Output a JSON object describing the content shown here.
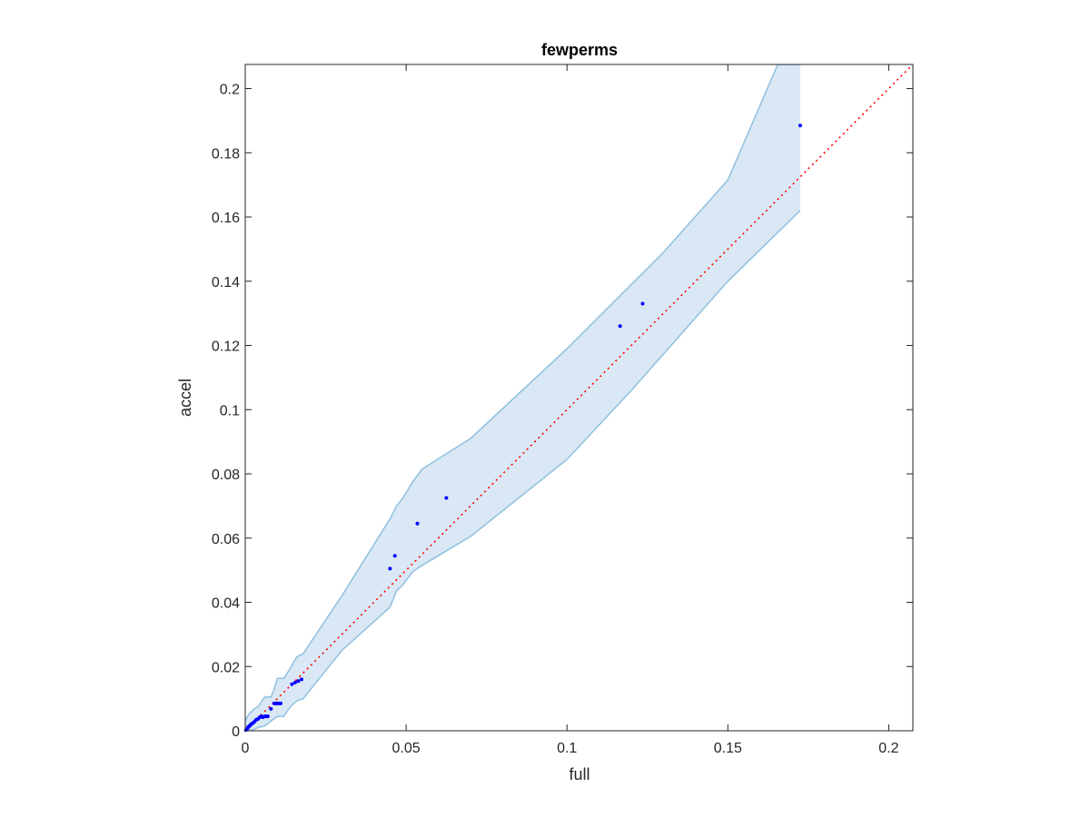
{
  "chart_data": {
    "type": "scatter",
    "title": "fewperms",
    "xlabel": "full",
    "ylabel": "accel",
    "xlim": [
      0,
      0.2075
    ],
    "ylim": [
      0,
      0.2075
    ],
    "xticks": [
      0,
      0.05,
      0.1,
      0.15,
      0.2
    ],
    "xtick_labels": [
      "0",
      "0.05",
      "0.1",
      "0.15",
      "0.2"
    ],
    "yticks": [
      0,
      0.02,
      0.04,
      0.06,
      0.08,
      0.1,
      0.12,
      0.14,
      0.16,
      0.18,
      0.2
    ],
    "ytick_labels": [
      "0",
      "0.02",
      "0.04",
      "0.06",
      "0.08",
      "0.1",
      "0.12",
      "0.14",
      "0.16",
      "0.18",
      "0.2"
    ],
    "grid": false,
    "colors": {
      "points": "#0000ff",
      "band_fill": "#d9e8f4",
      "band_edge": "#8fc0e0",
      "reference_line": "#ff0000",
      "axes": "#262626"
    },
    "series": [
      {
        "type": "scatter",
        "x": [
          0.0002,
          0.0005,
          0.0008,
          0.001,
          0.0013,
          0.0016,
          0.002,
          0.0025,
          0.003,
          0.0035,
          0.004,
          0.0045,
          0.005,
          0.0055,
          0.006,
          0.0065,
          0.007,
          0.008,
          0.009,
          0.0095,
          0.01,
          0.0105,
          0.011,
          0.0145,
          0.0155,
          0.0165,
          0.0175,
          0.045,
          0.0465,
          0.0535,
          0.0625,
          0.1165,
          0.1235,
          0.1725
        ],
        "y": [
          0.0002,
          0.0005,
          0.001,
          0.0012,
          0.0015,
          0.0018,
          0.0022,
          0.0025,
          0.003,
          0.0035,
          0.0037,
          0.0042,
          0.0045,
          0.0042,
          0.0045,
          0.0045,
          0.0045,
          0.0068,
          0.0085,
          0.0085,
          0.0085,
          0.0085,
          0.0085,
          0.0145,
          0.015,
          0.0155,
          0.016,
          0.0505,
          0.0545,
          0.0645,
          0.0725,
          0.126,
          0.133,
          0.1885
        ]
      },
      {
        "type": "band",
        "upper": {
          "x": [
            0.0,
            0.001,
            0.003,
            0.004,
            0.005,
            0.006,
            0.008,
            0.009,
            0.01,
            0.012,
            0.014,
            0.016,
            0.018,
            0.02,
            0.03,
            0.04,
            0.045,
            0.047,
            0.049,
            0.052,
            0.055,
            0.07,
            0.1,
            0.13,
            0.15,
            0.1655,
            0.1725
          ],
          "y": [
            0.003,
            0.005,
            0.007,
            0.0075,
            0.009,
            0.0105,
            0.0105,
            0.013,
            0.0163,
            0.0163,
            0.0195,
            0.023,
            0.024,
            0.027,
            0.042,
            0.058,
            0.066,
            0.07,
            0.0725,
            0.0775,
            0.0815,
            0.091,
            0.119,
            0.149,
            0.1715,
            0.208,
            0.208
          ]
        },
        "lower": {
          "x": [
            0.0,
            0.002,
            0.003,
            0.004,
            0.006,
            0.008,
            0.009,
            0.01,
            0.012,
            0.014,
            0.016,
            0.018,
            0.02,
            0.03,
            0.045,
            0.047,
            0.049,
            0.052,
            0.055,
            0.06,
            0.07,
            0.1,
            0.12,
            0.15,
            0.1725
          ],
          "y": [
            0.0,
            0.0002,
            0.0005,
            0.001,
            0.0015,
            0.003,
            0.0038,
            0.0045,
            0.0045,
            0.0075,
            0.0093,
            0.01,
            0.0125,
            0.025,
            0.0385,
            0.0435,
            0.0455,
            0.0495,
            0.0515,
            0.0545,
            0.0605,
            0.0845,
            0.106,
            0.14,
            0.162
          ]
        }
      },
      {
        "type": "line",
        "style": "dotted",
        "x": [
          0,
          0.2075
        ],
        "y": [
          0,
          0.2075
        ]
      }
    ]
  }
}
